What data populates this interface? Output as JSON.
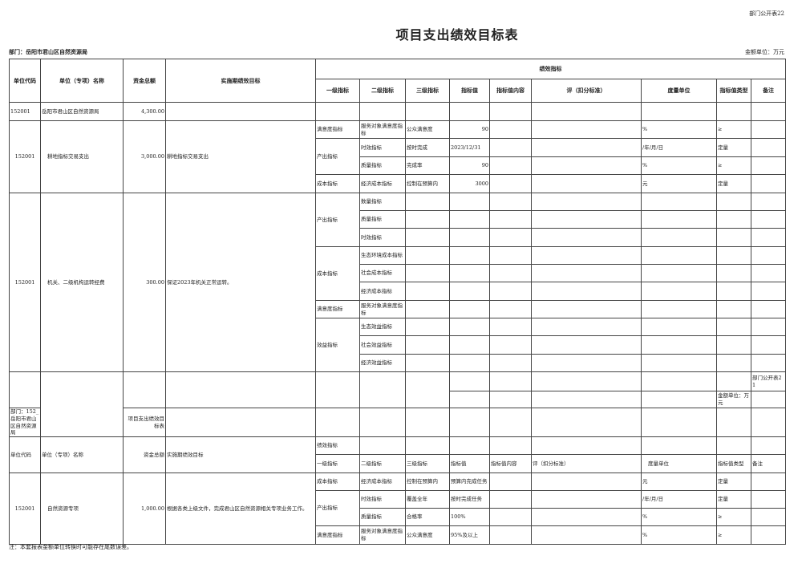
{
  "header": {
    "dept_no": "部门公开表22",
    "title": "项目支出绩效目标表",
    "dept": "部门：岳阳市君山区自然资源局",
    "unit": "金额单位：万元"
  },
  "columns": {
    "code": "单位代码",
    "name": "单位（专项）名称",
    "amount": "资金总额",
    "goal": "实施期绩效目标",
    "perf": "绩效指标",
    "l1": "一级指标",
    "l2": "二级指标",
    "l3": "三级指标",
    "val": "指标值",
    "content": "指标值内容",
    "score": "评（扣分标准）",
    "measure": "度量单位",
    "type": "指标值类型",
    "note": "备注"
  },
  "summary": {
    "code": "152001",
    "name": "岳阳市君山区自然资源局",
    "amount": "4,300.00"
  },
  "p1": {
    "code": "152001",
    "name": "耕地指标交易支出",
    "amount": "3,000.00",
    "goal": "耕地指标交易支出",
    "rows": [
      {
        "l1": "满意度指标",
        "l2": "服务对象满意度指标",
        "l3": "公众满意度",
        "val": "90",
        "unit": "%",
        "type": "≥"
      },
      {
        "l1": "产出指标",
        "l2": "时效指标",
        "l3": "按时完成",
        "val": "2023/12/31",
        "unit": "/年/月/日",
        "type": "定量"
      },
      {
        "l2": "质量指标",
        "l3": "完成率",
        "val": "90",
        "unit": "%",
        "type": "≥"
      },
      {
        "l1": "成本指标",
        "l2": "经济成本指标",
        "l3": "控制在预算内",
        "val": "3000",
        "unit": "元",
        "type": "定量"
      }
    ]
  },
  "p2": {
    "code": "152001",
    "name": "机关、二级机构运转经费",
    "amount": "300.00",
    "goal": "保证2023年机关正常运转。",
    "groups": [
      {
        "l1": "产出指标",
        "l2": [
          "数量指标",
          "质量指标",
          "时效指标"
        ]
      },
      {
        "l1": "成本指标",
        "l2": [
          "生态环境成本指标",
          "社会成本指标",
          "经济成本指标"
        ]
      },
      {
        "l1": "满意度指标",
        "l2": [
          "服务对象满意度指标"
        ]
      },
      {
        "l1": "效益指标",
        "l2": [
          "生态效益指标",
          "社会效益指标",
          "经济效益指标"
        ]
      }
    ]
  },
  "page2": {
    "dept_no": "部门公开表21",
    "unit": "金额单位：万元",
    "dept": "部门：152_岳阳市君山区自然资源局",
    "title": "项目支出绩效目标表",
    "columns": {
      "code": "单位代码",
      "name": "单位（专项）名称",
      "amount": "资金总额",
      "goal": "实施期绩效目标",
      "perf": "绩效指标",
      "l1": "一级指标",
      "l2": "二级指标",
      "l3": "三级指标",
      "val": "指标值",
      "content": "指标值内容",
      "score": "评（扣分标准）",
      "measure": "度量单位",
      "type": "指标值类型",
      "note": "备注"
    }
  },
  "p3": {
    "code": "152001",
    "name": "自然资源专项",
    "amount": "1,000.00",
    "goal": "根据各类上级文件，完成君山区自然资源相关专项业务工作。",
    "rows": [
      {
        "l1": "成本指标",
        "l2": "经济成本指标",
        "l3": "控制在预算内",
        "val": "预算内完成任务",
        "unit": "元",
        "type": "定量"
      },
      {
        "l1": "产出指标",
        "l2": "时效指标",
        "l3": "覆盖全年",
        "val": "按时完成任务",
        "unit": "/年/月/日",
        "type": "定量"
      },
      {
        "l2": "质量指标",
        "l3": "合格率",
        "val": "100%",
        "unit": "%",
        "type": "≥"
      },
      {
        "l1": "满意度指标",
        "l2": "服务对象满意度指标",
        "l3": "公众满意度",
        "val": "95%及以上",
        "unit": "%",
        "type": "≥"
      }
    ]
  },
  "footer": {
    "note": "注：本套报表金额单位转换时可能存在尾数误差。"
  }
}
